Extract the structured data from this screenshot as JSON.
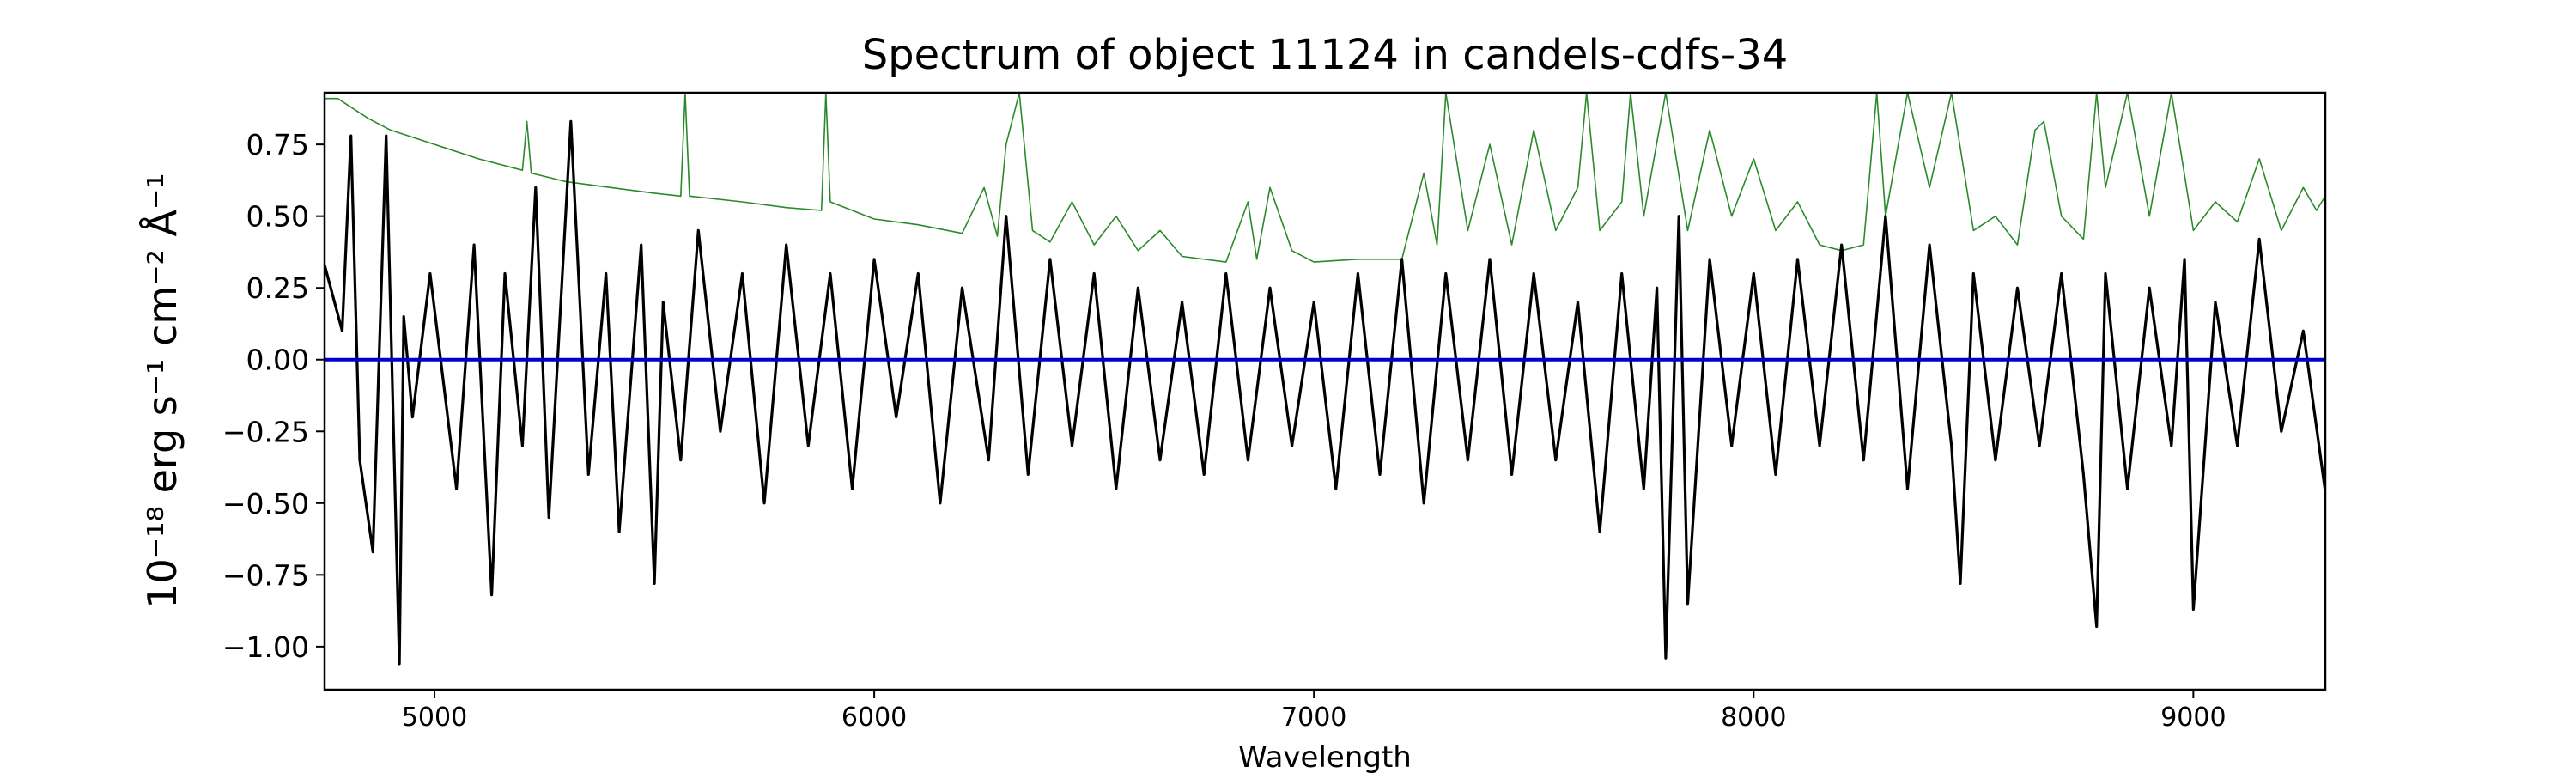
{
  "chart_data": {
    "type": "line",
    "title": "Spectrum of object 11124 in candels-cdfs-34",
    "xlabel": "Wavelength",
    "ylabel": "10⁻¹⁸ erg s⁻¹ cm⁻² Å⁻¹",
    "xlim": [
      4750,
      9300
    ],
    "ylim": [
      -1.15,
      0.93
    ],
    "x_ticks": [
      5000,
      6000,
      7000,
      8000,
      9000
    ],
    "y_ticks": [
      0.75,
      0.5,
      0.25,
      0.0,
      -0.25,
      -0.5,
      -0.75,
      -1.0
    ],
    "x_tick_labels": [
      "5000",
      "6000",
      "7000",
      "8000",
      "9000"
    ],
    "y_tick_labels": [
      "0.75",
      "0.50",
      "0.25",
      "0.00",
      "−0.25",
      "−0.50",
      "−0.75",
      "−1.00"
    ],
    "grid": false,
    "legend": "none",
    "colors": {
      "flux": "#000000",
      "error": "#2a8a2a",
      "zero": "#0000cc"
    },
    "series": [
      {
        "role": "flux",
        "x": [
          4750,
          4790,
          4810,
          4830,
          4860,
          4890,
          4920,
          4930,
          4950,
          4990,
          5050,
          5090,
          5130,
          5160,
          5200,
          5230,
          5260,
          5310,
          5350,
          5390,
          5420,
          5470,
          5500,
          5520,
          5560,
          5600,
          5650,
          5700,
          5750,
          5800,
          5850,
          5900,
          5950,
          6000,
          6050,
          6100,
          6150,
          6200,
          6260,
          6300,
          6350,
          6400,
          6450,
          6500,
          6550,
          6600,
          6650,
          6700,
          6750,
          6800,
          6850,
          6900,
          6950,
          7000,
          7050,
          7100,
          7150,
          7200,
          7250,
          7300,
          7350,
          7400,
          7450,
          7500,
          7550,
          7600,
          7650,
          7700,
          7750,
          7780,
          7800,
          7830,
          7850,
          7900,
          7950,
          8000,
          8050,
          8100,
          8150,
          8200,
          8250,
          8300,
          8350,
          8400,
          8450,
          8470,
          8500,
          8550,
          8600,
          8650,
          8700,
          8750,
          8780,
          8800,
          8850,
          8900,
          8950,
          8980,
          9000,
          9050,
          9100,
          9150,
          9200,
          9250,
          9300
        ],
        "y": [
          0.33,
          0.1,
          0.78,
          -0.35,
          -0.67,
          0.78,
          -1.06,
          0.15,
          -0.2,
          0.3,
          -0.45,
          0.4,
          -0.82,
          0.3,
          -0.3,
          0.6,
          -0.55,
          0.83,
          -0.4,
          0.3,
          -0.6,
          0.4,
          -0.78,
          0.2,
          -0.35,
          0.45,
          -0.25,
          0.3,
          -0.5,
          0.4,
          -0.3,
          0.3,
          -0.45,
          0.35,
          -0.2,
          0.3,
          -0.5,
          0.25,
          -0.35,
          0.5,
          -0.4,
          0.35,
          -0.3,
          0.3,
          -0.45,
          0.25,
          -0.35,
          0.2,
          -0.4,
          0.3,
          -0.35,
          0.25,
          -0.3,
          0.2,
          -0.45,
          0.3,
          -0.4,
          0.35,
          -0.5,
          0.3,
          -0.35,
          0.35,
          -0.4,
          0.3,
          -0.35,
          0.2,
          -0.6,
          0.3,
          -0.45,
          0.25,
          -1.04,
          0.5,
          -0.85,
          0.35,
          -0.3,
          0.3,
          -0.4,
          0.35,
          -0.3,
          0.4,
          -0.35,
          0.5,
          -0.45,
          0.4,
          -0.3,
          -0.78,
          0.3,
          -0.35,
          0.25,
          -0.3,
          0.3,
          -0.4,
          -0.93,
          0.3,
          -0.45,
          0.25,
          -0.3,
          0.35,
          -0.87,
          0.2,
          -0.3,
          0.42,
          -0.25,
          0.1,
          -0.46
        ]
      },
      {
        "role": "error",
        "x": [
          4750,
          4780,
          4800,
          4850,
          4900,
          5000,
          5100,
          5200,
          5210,
          5220,
          5300,
          5400,
          5500,
          5560,
          5570,
          5580,
          5700,
          5800,
          5880,
          5890,
          5900,
          5950,
          6000,
          6100,
          6200,
          6250,
          6280,
          6300,
          6330,
          6360,
          6400,
          6450,
          6500,
          6550,
          6600,
          6650,
          6700,
          6800,
          6850,
          6870,
          6900,
          6950,
          7000,
          7100,
          7200,
          7250,
          7280,
          7300,
          7350,
          7400,
          7450,
          7500,
          7550,
          7600,
          7620,
          7650,
          7700,
          7720,
          7750,
          7800,
          7850,
          7900,
          7950,
          8000,
          8050,
          8100,
          8150,
          8200,
          8250,
          8280,
          8300,
          8350,
          8400,
          8450,
          8500,
          8550,
          8600,
          8640,
          8660,
          8700,
          8750,
          8780,
          8800,
          8850,
          8900,
          8950,
          9000,
          9050,
          9100,
          9150,
          9200,
          9250,
          9280,
          9300
        ],
        "y": [
          0.91,
          0.91,
          0.89,
          0.84,
          0.8,
          0.75,
          0.7,
          0.66,
          0.83,
          0.65,
          0.62,
          0.6,
          0.58,
          0.57,
          0.93,
          0.57,
          0.55,
          0.53,
          0.52,
          0.93,
          0.55,
          0.52,
          0.49,
          0.47,
          0.44,
          0.6,
          0.43,
          0.75,
          0.93,
          0.45,
          0.41,
          0.55,
          0.4,
          0.5,
          0.38,
          0.45,
          0.36,
          0.34,
          0.55,
          0.35,
          0.6,
          0.38,
          0.34,
          0.35,
          0.35,
          0.65,
          0.4,
          0.93,
          0.45,
          0.75,
          0.4,
          0.8,
          0.45,
          0.6,
          0.93,
          0.45,
          0.55,
          0.93,
          0.5,
          0.93,
          0.45,
          0.8,
          0.5,
          0.7,
          0.45,
          0.55,
          0.4,
          0.38,
          0.4,
          0.93,
          0.5,
          0.93,
          0.6,
          0.93,
          0.45,
          0.5,
          0.4,
          0.8,
          0.83,
          0.5,
          0.42,
          0.93,
          0.6,
          0.93,
          0.5,
          0.93,
          0.45,
          0.55,
          0.48,
          0.7,
          0.45,
          0.6,
          0.52,
          0.57
        ]
      },
      {
        "role": "zero",
        "x": [
          4750,
          9300
        ],
        "y": [
          0.0,
          0.0
        ]
      }
    ]
  }
}
